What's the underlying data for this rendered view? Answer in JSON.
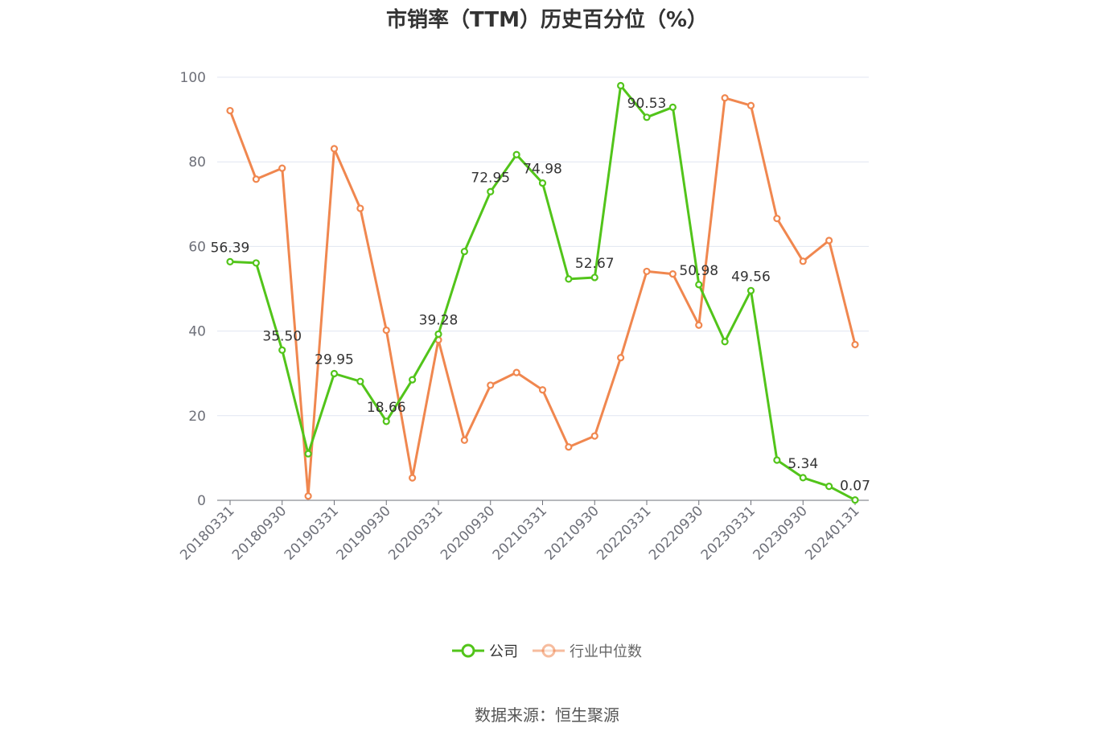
{
  "chart_data": {
    "type": "line",
    "title": "市销率（TTM）历史百分位（%）",
    "source": "数据来源：恒生聚源",
    "ylim": [
      0,
      100
    ],
    "yticks": [
      0,
      20,
      40,
      60,
      80,
      100
    ],
    "grid": true,
    "legend_position": "bottom-center",
    "x": [
      "20180331",
      "20180630",
      "20180930",
      "20181231",
      "20190331",
      "20190630",
      "20190930",
      "20191231",
      "20200331",
      "20200630",
      "20200930",
      "20201231",
      "20210331",
      "20210630",
      "20210930",
      "20211231",
      "20220331",
      "20220630",
      "20220930",
      "20221231",
      "20230331",
      "20230630",
      "20230930",
      "20231231",
      "20240131"
    ],
    "x_tick_labels": [
      "20180331",
      "20180930",
      "20190331",
      "20190930",
      "20200331",
      "20200930",
      "20210331",
      "20210930",
      "20220331",
      "20220930",
      "20230331",
      "20230930",
      "20240131"
    ],
    "series": [
      {
        "name": "公司",
        "color": "#52c41a",
        "values": [
          56.39,
          56.1,
          35.5,
          11.0,
          29.95,
          28.1,
          18.66,
          28.5,
          39.28,
          58.8,
          72.95,
          81.7,
          74.98,
          52.3,
          52.67,
          98.0,
          90.53,
          92.9,
          50.98,
          37.5,
          49.56,
          9.5,
          5.34,
          3.3,
          0.07
        ],
        "labels": [
          "56.39",
          "",
          "35.50",
          "",
          "29.95",
          "",
          "18.66",
          "",
          "39.28",
          "",
          "72.95",
          "",
          "74.98",
          "",
          "52.67",
          "",
          "90.53",
          "",
          "50.98",
          "",
          "49.56",
          "",
          "5.34",
          "",
          "0.07"
        ]
      },
      {
        "name": "行业中位数",
        "color": "#f0874f",
        "values": [
          92.1,
          75.9,
          78.5,
          1.0,
          83.1,
          69.0,
          40.2,
          5.3,
          37.9,
          14.2,
          27.2,
          30.2,
          26.1,
          12.6,
          15.2,
          33.7,
          54.1,
          53.5,
          41.4,
          95.1,
          93.3,
          66.6,
          56.5,
          61.4,
          36.8
        ]
      }
    ]
  }
}
